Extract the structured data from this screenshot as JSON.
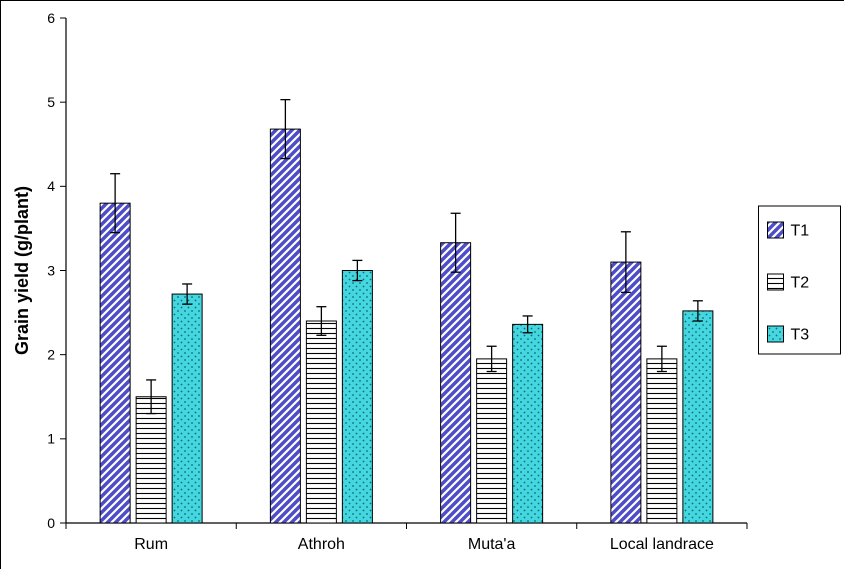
{
  "chart_data": {
    "type": "bar",
    "title": "",
    "xlabel": "",
    "ylabel": "Grain yield (g/plant)",
    "ylim": [
      0,
      6
    ],
    "ytick_step": 1,
    "grid": false,
    "legend_position": "right",
    "background": "#ffffff",
    "axis_color": "#000000",
    "categories": [
      "Rum",
      "Athroh",
      "Muta'a",
      "Local landrace"
    ],
    "series": [
      {
        "name": "T1",
        "values": [
          3.8,
          4.68,
          3.33,
          3.1
        ],
        "errors": [
          0.35,
          0.35,
          0.35,
          0.36
        ],
        "fill": "#4d4dc9",
        "pattern": "diagonal-hatch",
        "pattern_fg": "#ffffff"
      },
      {
        "name": "T2",
        "values": [
          1.5,
          2.4,
          1.95,
          1.95
        ],
        "errors": [
          0.2,
          0.17,
          0.15,
          0.15
        ],
        "fill": "#ffffff",
        "pattern": "horizontal-lines",
        "pattern_fg": "#000000"
      },
      {
        "name": "T3",
        "values": [
          2.72,
          3.0,
          2.36,
          2.52
        ],
        "errors": [
          0.12,
          0.12,
          0.1,
          0.12
        ],
        "fill": "#45d7e0",
        "pattern": "dots",
        "pattern_fg": "#0e6b74"
      }
    ]
  }
}
